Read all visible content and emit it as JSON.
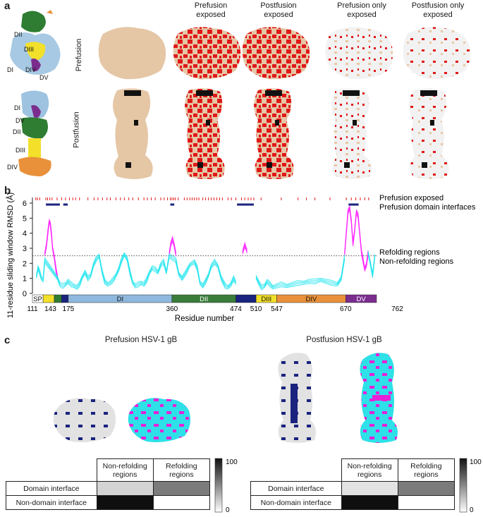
{
  "panel_a": {
    "label": "a",
    "column_headers": [
      "Prefusion exposed",
      "Postfusion exposed",
      "Prefusion only exposed",
      "Postfusion only exposed"
    ],
    "row_labels": [
      "Prefusion",
      "Postfusion"
    ],
    "prefusion_domains": [
      "DII",
      "DIII",
      "DI",
      "DIV",
      "DV"
    ],
    "postfusion_domains": [
      "DI",
      "DV",
      "DII",
      "DIII",
      "DIV"
    ]
  },
  "panel_b": {
    "label": "b",
    "legend": {
      "prefusion_exposed": "Prefusion exposed",
      "domain_interfaces": "Prefusion domain interfaces",
      "refolding": "Refolding regions",
      "non_refolding": "Non-refolding regions"
    }
  },
  "chart_data": {
    "type": "line",
    "ylabel": "11-residue sliding window RMSD (Å)",
    "xlabel": "Residue number",
    "ylim": [
      0,
      6
    ],
    "y_ticks": [
      "0",
      "1",
      "2",
      "3",
      "4",
      "5",
      "6"
    ],
    "threshold": 2.5,
    "x_ticks": [
      "111",
      "143",
      "175",
      "360",
      "474",
      "510",
      "547",
      "670",
      "762"
    ],
    "domains": [
      {
        "name": "SP",
        "start": 111,
        "end": 130,
        "color": "#ffffff"
      },
      {
        "name": "",
        "start": 130,
        "end": 150,
        "color": "#f2e02a"
      },
      {
        "name": "",
        "start": 150,
        "end": 163,
        "color": "#2e7d32"
      },
      {
        "name": "",
        "start": 163,
        "end": 175,
        "color": "#1a237e"
      },
      {
        "name": "DI",
        "start": 175,
        "end": 360,
        "color": "#8fb8de"
      },
      {
        "name": "DII",
        "start": 360,
        "end": 474,
        "color": "#3a7d3a"
      },
      {
        "name": "",
        "start": 474,
        "end": 510,
        "color": "#1a237e"
      },
      {
        "name": "DIII",
        "start": 510,
        "end": 547,
        "color": "#f2e02a"
      },
      {
        "name": "DIV",
        "start": 547,
        "end": 670,
        "color": "#e8913a"
      },
      {
        "name": "DV",
        "start": 670,
        "end": 725,
        "color": "#7b2d8e"
      }
    ],
    "xlim": [
      111,
      725
    ],
    "series": [
      {
        "name": "Refolding regions",
        "color": "#ff22ff",
        "x": [
          133,
          136,
          139,
          141,
          143,
          145,
          147,
          150,
          153,
          156
        ],
        "y": [
          2.6,
          3.2,
          4.2,
          4.8,
          4.6,
          3.9,
          3.0,
          2.4,
          1.6,
          1.0
        ]
      },
      {
        "name": "Refolding regions",
        "color": "#ff22ff",
        "x": [
          355,
          358,
          361,
          364,
          367
        ],
        "y": [
          2.6,
          3.3,
          3.6,
          3.2,
          2.6
        ]
      },
      {
        "name": "Refolding regions",
        "color": "#ff22ff",
        "x": [
          486,
          488,
          490,
          492,
          494
        ],
        "y": [
          2.7,
          3.0,
          3.2,
          3.0,
          2.8
        ]
      },
      {
        "name": "Refolding regions",
        "color": "#ff22ff",
        "x": [
          668,
          671,
          674,
          677,
          680,
          683,
          686,
          689,
          692,
          695,
          698,
          701,
          704,
          707,
          710
        ],
        "y": [
          2.6,
          4.0,
          5.4,
          5.7,
          4.8,
          3.3,
          4.2,
          5.4,
          5.2,
          4.0,
          2.8,
          2.2,
          1.6,
          1.9,
          2.7
        ]
      },
      {
        "name": "Non-refolding regions",
        "color": "#22e5ee",
        "x": [
          118,
          121,
          124,
          127,
          130,
          133,
          156,
          160,
          165,
          170,
          175,
          180,
          185,
          190,
          195,
          200,
          205,
          210,
          215,
          220,
          225,
          230,
          235,
          240,
          245,
          250,
          255,
          260,
          265,
          270,
          275,
          280,
          285,
          290,
          295,
          300,
          305,
          310,
          315,
          320,
          325,
          330,
          335,
          340,
          345,
          350,
          355,
          367,
          372,
          378,
          385,
          392,
          400,
          405,
          410,
          415,
          420,
          425,
          430,
          436,
          442,
          448,
          455,
          460,
          465,
          470,
          474
        ],
        "y": [
          1.1,
          1.7,
          1.4,
          1.0,
          0.9,
          2.2,
          1.0,
          0.6,
          0.5,
          0.6,
          0.8,
          0.6,
          0.5,
          0.4,
          0.6,
          1.1,
          1.4,
          1.0,
          1.2,
          1.9,
          2.3,
          2.5,
          1.5,
          0.8,
          0.6,
          0.7,
          0.9,
          1.2,
          1.6,
          2.2,
          2.6,
          2.3,
          1.4,
          0.7,
          0.5,
          0.6,
          0.7,
          0.6,
          0.9,
          1.4,
          1.7,
          1.6,
          1.4,
          1.9,
          2.1,
          1.4,
          2.5,
          2.2,
          1.3,
          1.0,
          1.4,
          1.9,
          2.1,
          1.7,
          0.7,
          0.5,
          0.8,
          1.2,
          1.8,
          2.1,
          1.8,
          1.0,
          0.5,
          0.4,
          0.6,
          1.0,
          0.7
        ]
      },
      {
        "name": "Non-refolding regions",
        "color": "#22e5ee",
        "x": [
          510,
          515,
          520,
          525,
          530,
          535,
          540,
          547,
          555,
          565,
          575,
          585,
          595,
          605,
          615,
          625,
          635,
          645,
          655,
          662,
          668
        ],
        "y": [
          1.1,
          0.7,
          0.4,
          0.5,
          0.8,
          0.6,
          0.4,
          0.5,
          0.6,
          0.5,
          0.6,
          0.7,
          0.7,
          0.8,
          0.8,
          0.9,
          0.8,
          0.7,
          0.6,
          1.0,
          2.4
        ]
      },
      {
        "name": "Non-refolding regions",
        "color": "#22e5ee",
        "x": [
          710,
          714,
          718,
          722
        ],
        "y": [
          2.7,
          2.0,
          1.2,
          2.5
        ]
      }
    ],
    "exposed_ticks": [
      117,
      120,
      124,
      135,
      138,
      142,
      146,
      155,
      163,
      170,
      177,
      183,
      188,
      195,
      210,
      221,
      228,
      236,
      244,
      250,
      260,
      268,
      275,
      283,
      290,
      300,
      310,
      316,
      323,
      330,
      340,
      346,
      352,
      357,
      360,
      363,
      366,
      371,
      382,
      387,
      392,
      396,
      400,
      404,
      408,
      415,
      420,
      425,
      430,
      435,
      440,
      445,
      450,
      460,
      466,
      474,
      484,
      490,
      496,
      501,
      506,
      519,
      555,
      585,
      600,
      615,
      642,
      671,
      680,
      688,
      696,
      704,
      711
    ],
    "interface_bars": [
      [
        135,
        160
      ],
      [
        166,
        174
      ],
      [
        357,
        364
      ],
      [
        476,
        506
      ],
      [
        675,
        693
      ]
    ]
  },
  "panel_c": {
    "label": "c",
    "prefusion_title": "Prefusion HSV-1 gB",
    "postfusion_title": "Postfusion HSV-1 gB",
    "table": {
      "col_headers": [
        "Non-refolding regions",
        "Refolding regions"
      ],
      "row_headers": [
        "Domain interface",
        "Non-domain interface"
      ]
    },
    "prefusion_cells": [
      [
        18,
        55
      ],
      [
        100,
        0
      ]
    ],
    "postfusion_cells": [
      [
        12,
        55
      ],
      [
        100,
        0
      ]
    ],
    "colorbar": {
      "max": "100",
      "min": "0"
    }
  }
}
